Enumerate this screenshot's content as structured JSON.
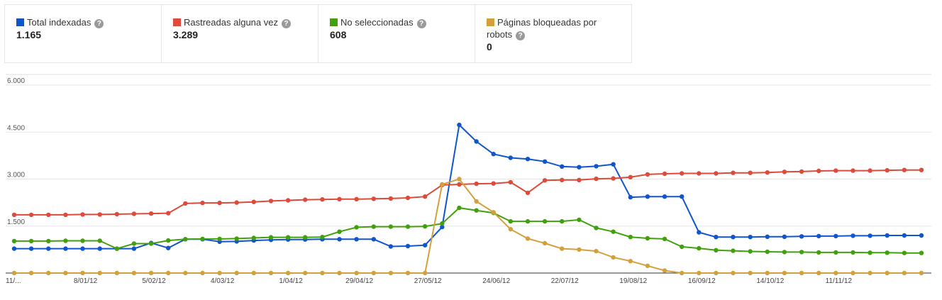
{
  "legend": [
    {
      "label": "Total indexadas",
      "value": "1.165",
      "color": "#1155cc"
    },
    {
      "label": "Rastreadas alguna vez",
      "value": "3.289",
      "color": "#dc4b3b"
    },
    {
      "label": "No seleccionadas",
      "value": "608",
      "color": "#41a10c"
    },
    {
      "label": "Páginas bloqueadas por robots",
      "label_line1": "Páginas bloqueadas por",
      "label_line2": "robots",
      "value": "0",
      "color": "#d4a03c"
    }
  ],
  "help_glyph": "?",
  "chart_data": {
    "type": "line",
    "y_ticks": [
      "6.000",
      "4.500",
      "3.000",
      "1.500"
    ],
    "ylim": [
      0,
      6000
    ],
    "x_labels": [
      "11/...",
      "8/01/12",
      "5/02/12",
      "4/03/12",
      "1/04/12",
      "29/04/12",
      "27/05/12",
      "24/06/12",
      "22/07/12",
      "19/08/12",
      "16/09/12",
      "14/10/12",
      "11/11/12"
    ],
    "grid": true,
    "series": [
      {
        "name": "Total indexadas",
        "color": "#1155cc",
        "values": [
          780,
          780,
          780,
          780,
          780,
          780,
          780,
          780,
          960,
          800,
          1080,
          1080,
          1000,
          1010,
          1040,
          1060,
          1070,
          1070,
          1080,
          1080,
          1080,
          1080,
          850,
          860,
          890,
          1470,
          4730,
          4200,
          3800,
          3680,
          3640,
          3560,
          3400,
          3380,
          3410,
          3470,
          2420,
          2440,
          2440,
          2440,
          1300,
          1150,
          1150,
          1150,
          1160,
          1160,
          1170,
          1180,
          1180,
          1190,
          1190,
          1200,
          1200,
          1200
        ]
      },
      {
        "name": "Rastreadas alguna vez",
        "color": "#dc4b3b",
        "values": [
          1860,
          1860,
          1860,
          1860,
          1870,
          1870,
          1880,
          1890,
          1900,
          1910,
          2220,
          2240,
          2240,
          2250,
          2270,
          2300,
          2320,
          2340,
          2350,
          2360,
          2360,
          2370,
          2380,
          2400,
          2440,
          2810,
          2830,
          2850,
          2860,
          2900,
          2560,
          2960,
          2970,
          2970,
          3010,
          3020,
          3060,
          3150,
          3170,
          3180,
          3180,
          3180,
          3200,
          3200,
          3210,
          3230,
          3240,
          3260,
          3270,
          3270,
          3270,
          3280,
          3290,
          3290
        ]
      },
      {
        "name": "No seleccionadas",
        "color": "#41a10c",
        "values": [
          1020,
          1020,
          1020,
          1030,
          1030,
          1030,
          780,
          940,
          940,
          1040,
          1080,
          1090,
          1090,
          1100,
          1120,
          1140,
          1140,
          1140,
          1150,
          1320,
          1460,
          1480,
          1480,
          1480,
          1490,
          1580,
          2080,
          2000,
          1920,
          1650,
          1650,
          1650,
          1650,
          1700,
          1440,
          1320,
          1150,
          1110,
          1090,
          840,
          790,
          730,
          710,
          690,
          680,
          670,
          670,
          660,
          660,
          660,
          650,
          650,
          640,
          640
        ]
      },
      {
        "name": "Páginas bloqueadas por robots",
        "color": "#d4a03c",
        "values": [
          0,
          0,
          0,
          0,
          0,
          0,
          0,
          0,
          0,
          0,
          0,
          0,
          0,
          0,
          0,
          0,
          0,
          0,
          0,
          0,
          0,
          0,
          0,
          0,
          0,
          2830,
          3000,
          2290,
          1940,
          1400,
          1100,
          950,
          780,
          750,
          700,
          500,
          380,
          230,
          80,
          0,
          0,
          0,
          0,
          0,
          0,
          0,
          0,
          0,
          0,
          0,
          0,
          0,
          0,
          0
        ]
      }
    ]
  }
}
